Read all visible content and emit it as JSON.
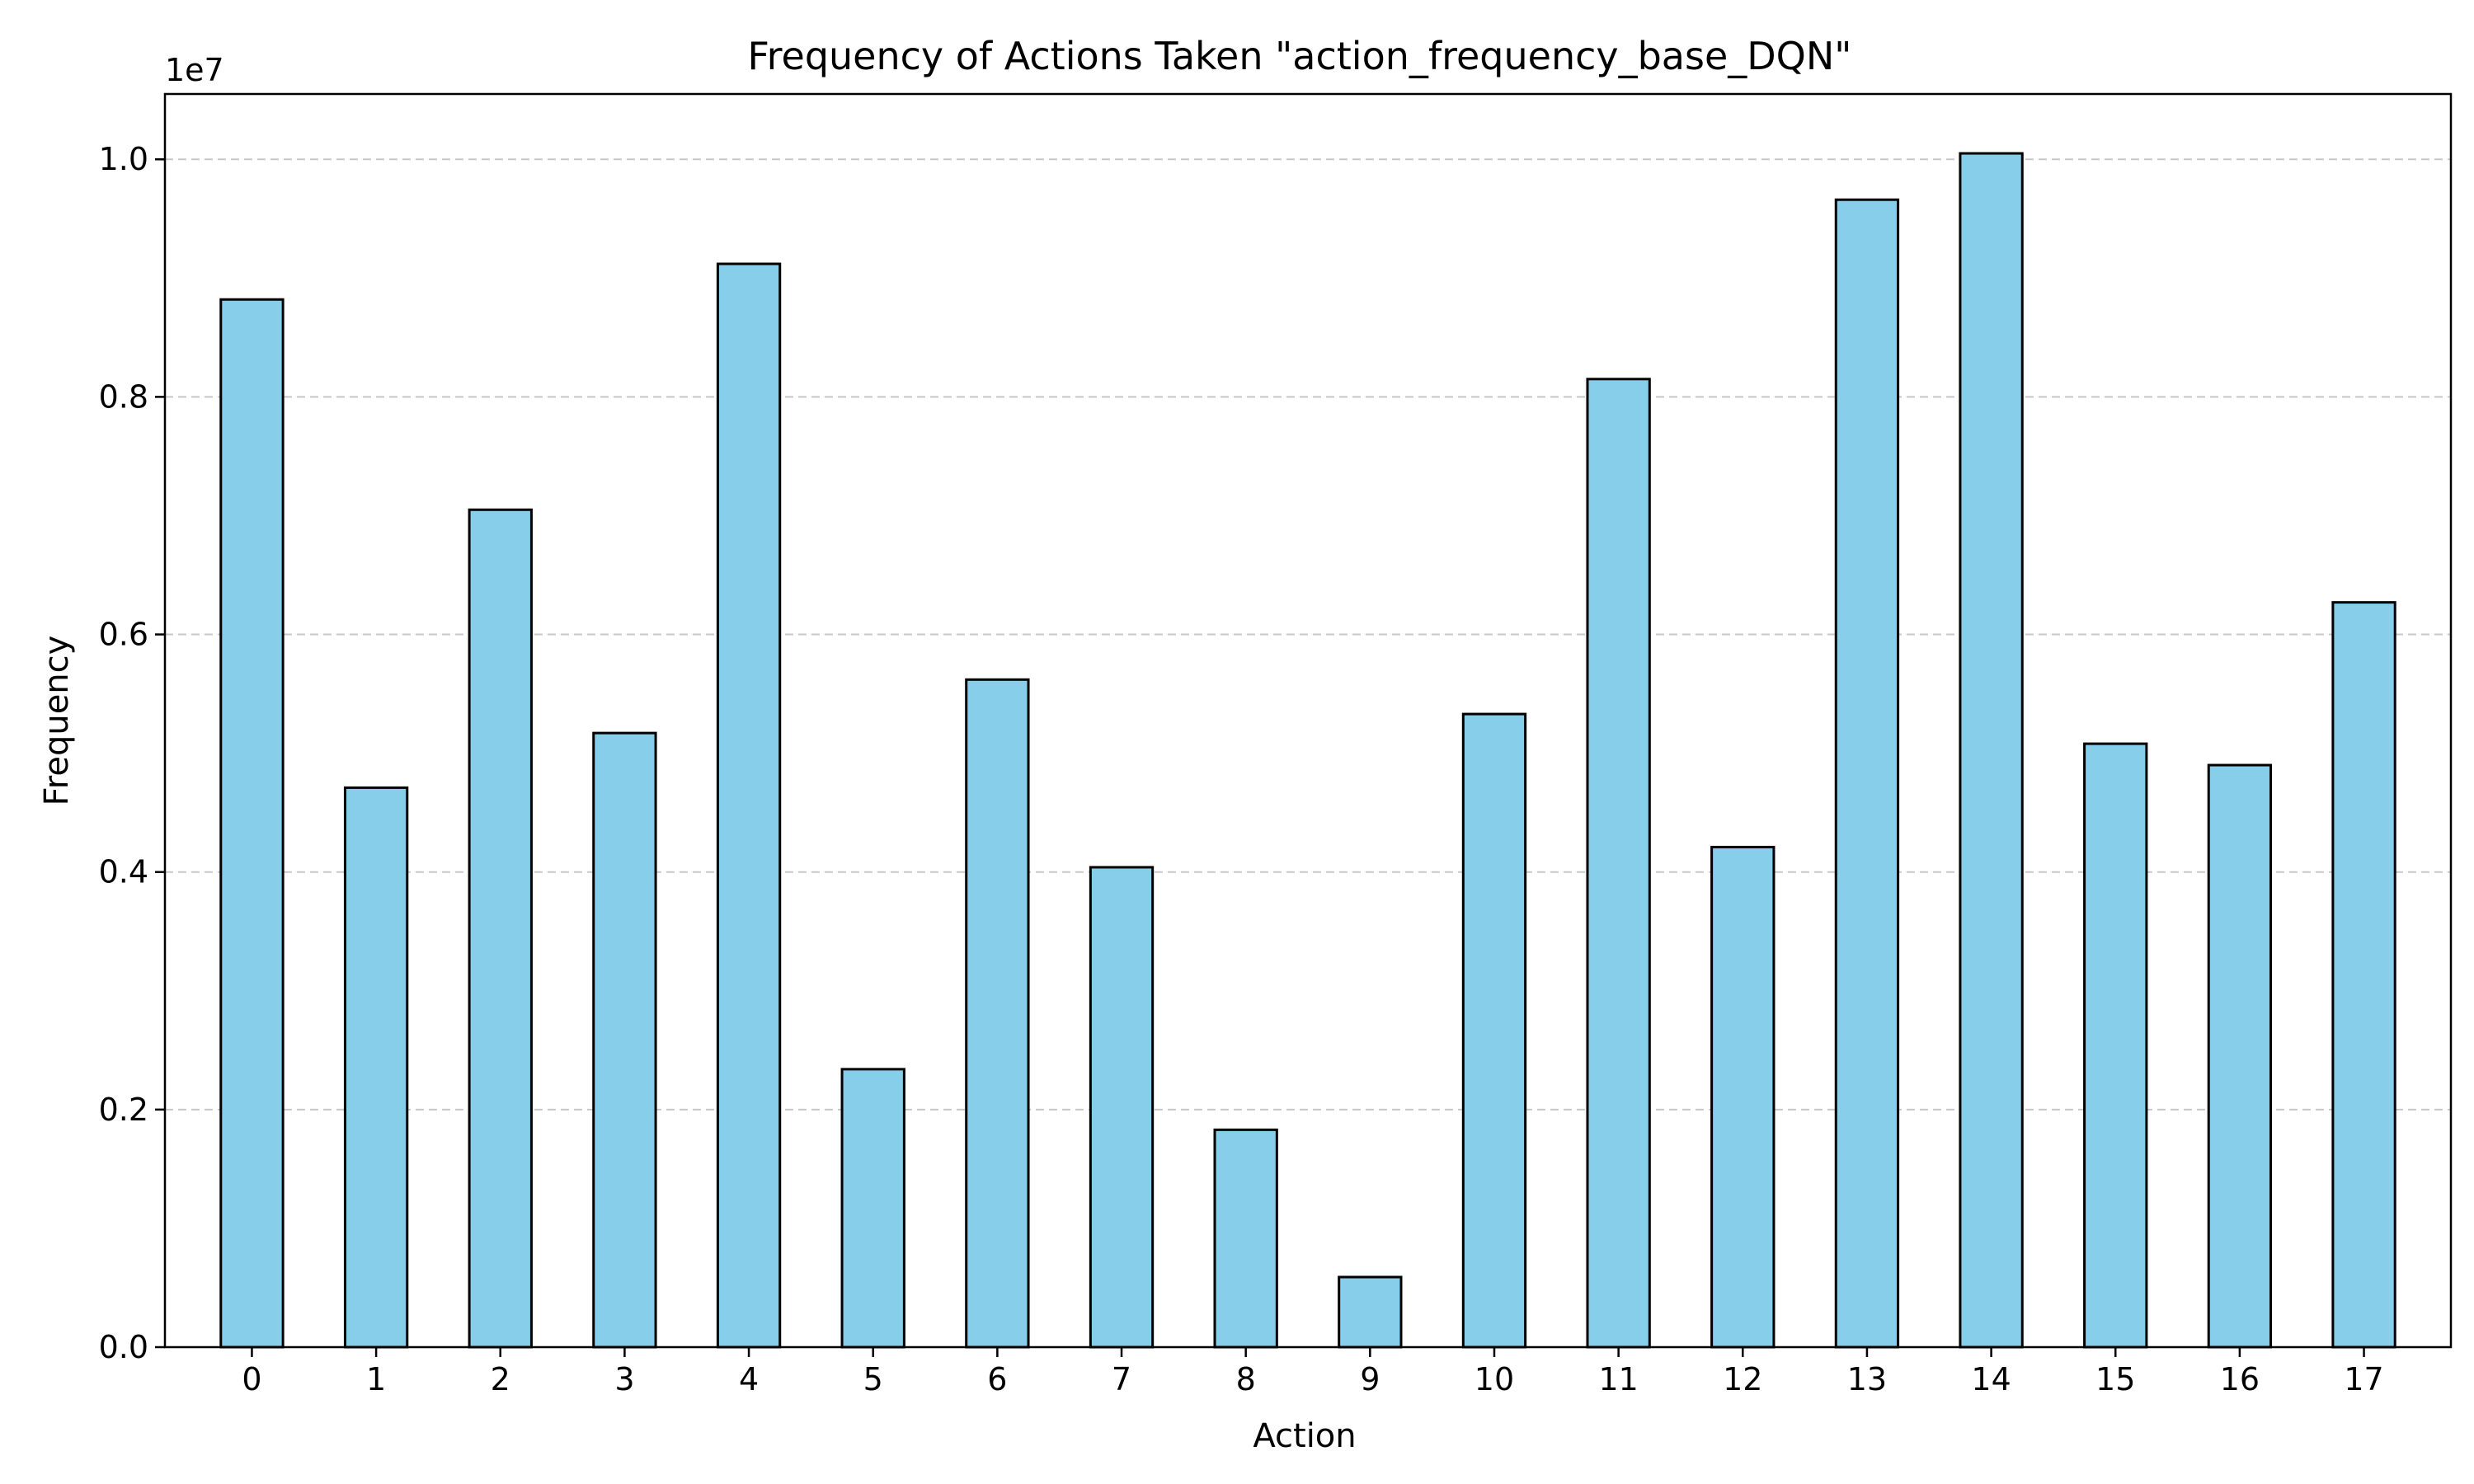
{
  "chart_data": {
    "type": "bar",
    "title": "Frequency of Actions Taken \"action_frequency_base_DQN\"",
    "xlabel": "Action",
    "ylabel": "Frequency",
    "y_offset_label": "1e7",
    "y_scale": 10000000,
    "categories": [
      "0",
      "1",
      "2",
      "3",
      "4",
      "5",
      "6",
      "7",
      "8",
      "9",
      "10",
      "11",
      "12",
      "13",
      "14",
      "15",
      "16",
      "17"
    ],
    "values": [
      8820000,
      4710000,
      7050000,
      5170000,
      9120000,
      2340000,
      5620000,
      4040000,
      1830000,
      590000,
      5330000,
      8150000,
      4210000,
      9660000,
      10050000,
      5080000,
      4900000,
      6270000
    ],
    "ylim": [
      0,
      10550000
    ],
    "yticks": [
      0,
      2000000,
      4000000,
      6000000,
      8000000,
      10000000
    ],
    "ytick_labels": [
      "0.0",
      "0.2",
      "0.4",
      "0.6",
      "0.8",
      "1.0"
    ],
    "grid": "y-dashed",
    "legend": "none",
    "bar_color": "#87ceeb",
    "edge_color": "#000000",
    "grid_color": "#b0b0b0"
  }
}
